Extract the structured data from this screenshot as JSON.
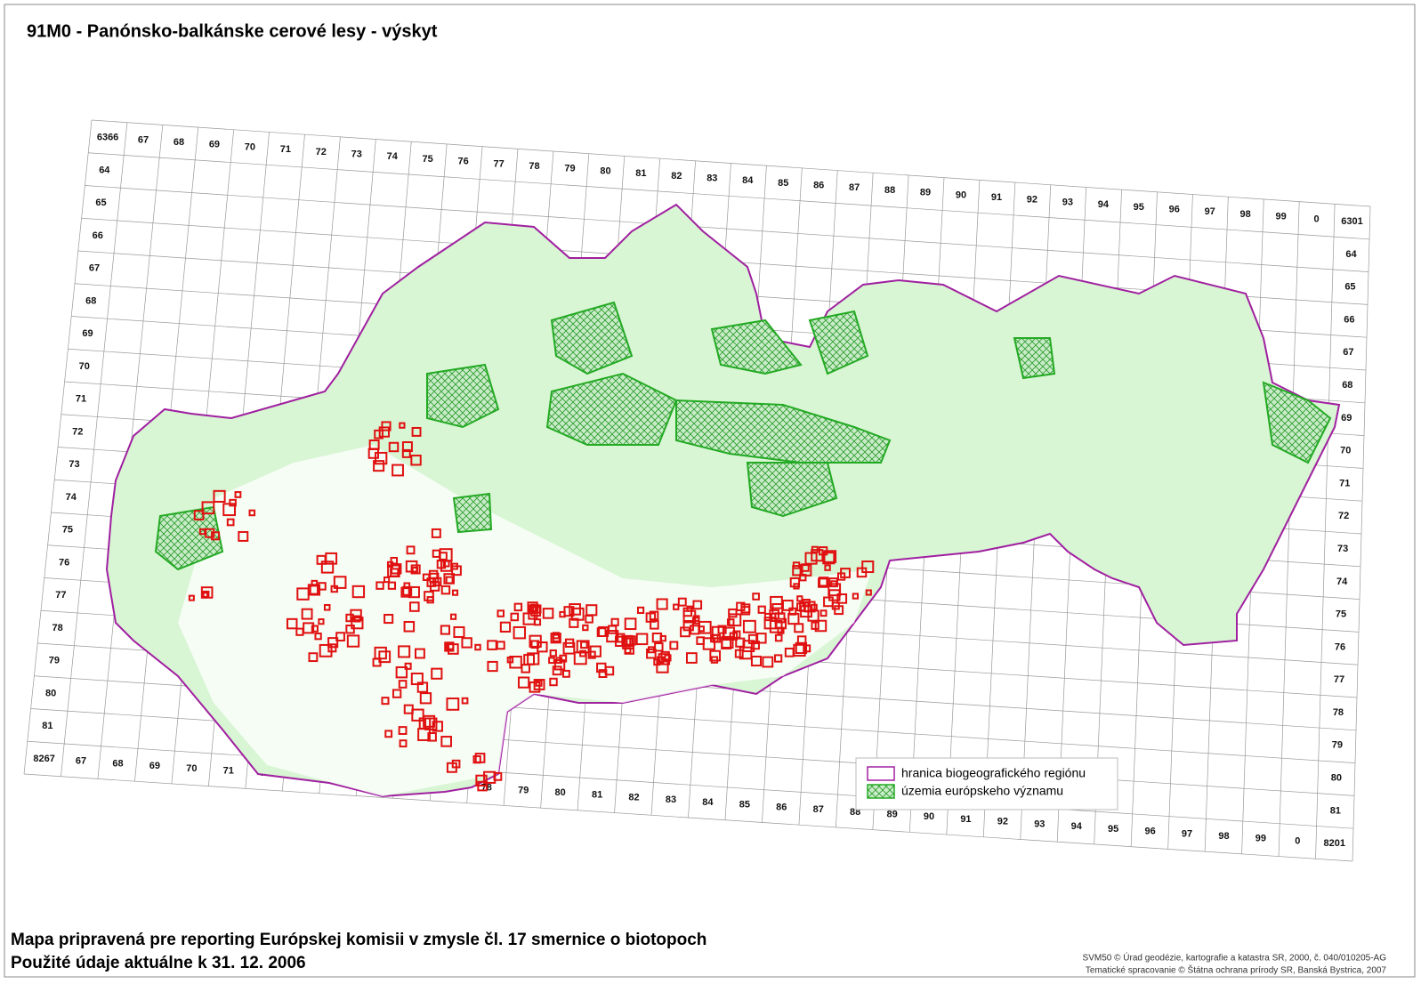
{
  "title": "91M0 - Panónsko-balkánske cerové lesy - výskyt",
  "grid": {
    "corners": {
      "top_left": "6366",
      "top_right": "6301",
      "bottom_left": "8267",
      "bottom_right": "8201"
    },
    "columns": [
      "67",
      "68",
      "69",
      "70",
      "71",
      "72",
      "73",
      "74",
      "75",
      "76",
      "77",
      "78",
      "79",
      "80",
      "81",
      "82",
      "83",
      "84",
      "85",
      "86",
      "87",
      "88",
      "89",
      "90",
      "91",
      "92",
      "93",
      "94",
      "95",
      "96",
      "97",
      "98",
      "99",
      "0"
    ],
    "rows": [
      "64",
      "65",
      "66",
      "67",
      "68",
      "69",
      "70",
      "71",
      "72",
      "73",
      "74",
      "75",
      "76",
      "77",
      "78",
      "79",
      "80",
      "81"
    ]
  },
  "legend": {
    "items": [
      "hranica biogeografického regiónu",
      "územia európskeho významu"
    ]
  },
  "footer": {
    "lines": [
      "Mapa pripravená pre reporting Európskej komisii v zmysle čl. 17 smernice o biotopoch",
      "Použité údaje aktuálne k 31. 12. 2006"
    ]
  },
  "credits": [
    "SVM50 © Úrad geodézie, kartografie a katastra SR, 2000, č. 040/010205-AG",
    "Tematické spracovanie © Štátna ochrana prírody SR, Banská Bystrica, 2007"
  ]
}
